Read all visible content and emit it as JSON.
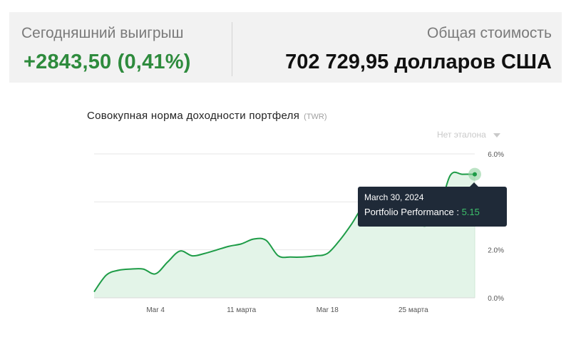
{
  "summary": {
    "today_label": "Сегодняшний выигрыш",
    "today_value": "+2843,50 (0,41%)",
    "total_label": "Общая стоимость",
    "total_value": "702 729,95 долларов США"
  },
  "chart_header": {
    "title": "Совокупная норма доходности портфеля",
    "subtitle": "(TWR)",
    "benchmark": "Нет эталона"
  },
  "colors": {
    "accent": "#2e8b3d",
    "line": "#1e9c47",
    "area": "#e3f4e8",
    "tooltip_bg": "#1f2a38"
  },
  "chart_data": {
    "type": "area",
    "xlabel": "",
    "ylabel": "",
    "x_ticks": [
      "Mar 4",
      "11 марта",
      "Mar 18",
      "25 марта"
    ],
    "y_ticks": [
      "0.0%",
      "2.0%",
      "6.0%"
    ],
    "ylim": [
      0,
      6
    ],
    "grid": true,
    "series": [
      {
        "name": "Portfolio Performance",
        "x": [
          "2024-02-28",
          "2024-02-29",
          "2024-03-01",
          "2024-03-02",
          "2024-03-03",
          "2024-03-04",
          "2024-03-05",
          "2024-03-06",
          "2024-03-07",
          "2024-03-08",
          "2024-03-09",
          "2024-03-10",
          "2024-03-11",
          "2024-03-12",
          "2024-03-13",
          "2024-03-14",
          "2024-03-15",
          "2024-03-16",
          "2024-03-17",
          "2024-03-18",
          "2024-03-19",
          "2024-03-20",
          "2024-03-21",
          "2024-03-22",
          "2024-03-23",
          "2024-03-24",
          "2024-03-25",
          "2024-03-26",
          "2024-03-27",
          "2024-03-28",
          "2024-03-29",
          "2024-03-30"
        ],
        "values": [
          0.25,
          0.95,
          1.15,
          1.2,
          1.2,
          1.0,
          1.5,
          1.95,
          1.75,
          1.85,
          2.0,
          2.15,
          2.25,
          2.45,
          2.4,
          1.75,
          1.7,
          1.7,
          1.75,
          1.85,
          2.4,
          3.1,
          3.9,
          4.2,
          4.0,
          3.4,
          3.2,
          3.0,
          3.5,
          5.1,
          5.15,
          5.15
        ]
      }
    ],
    "tooltip": {
      "date": "March 30, 2024",
      "label": "Portfolio Performance :",
      "value": "5.15"
    }
  }
}
